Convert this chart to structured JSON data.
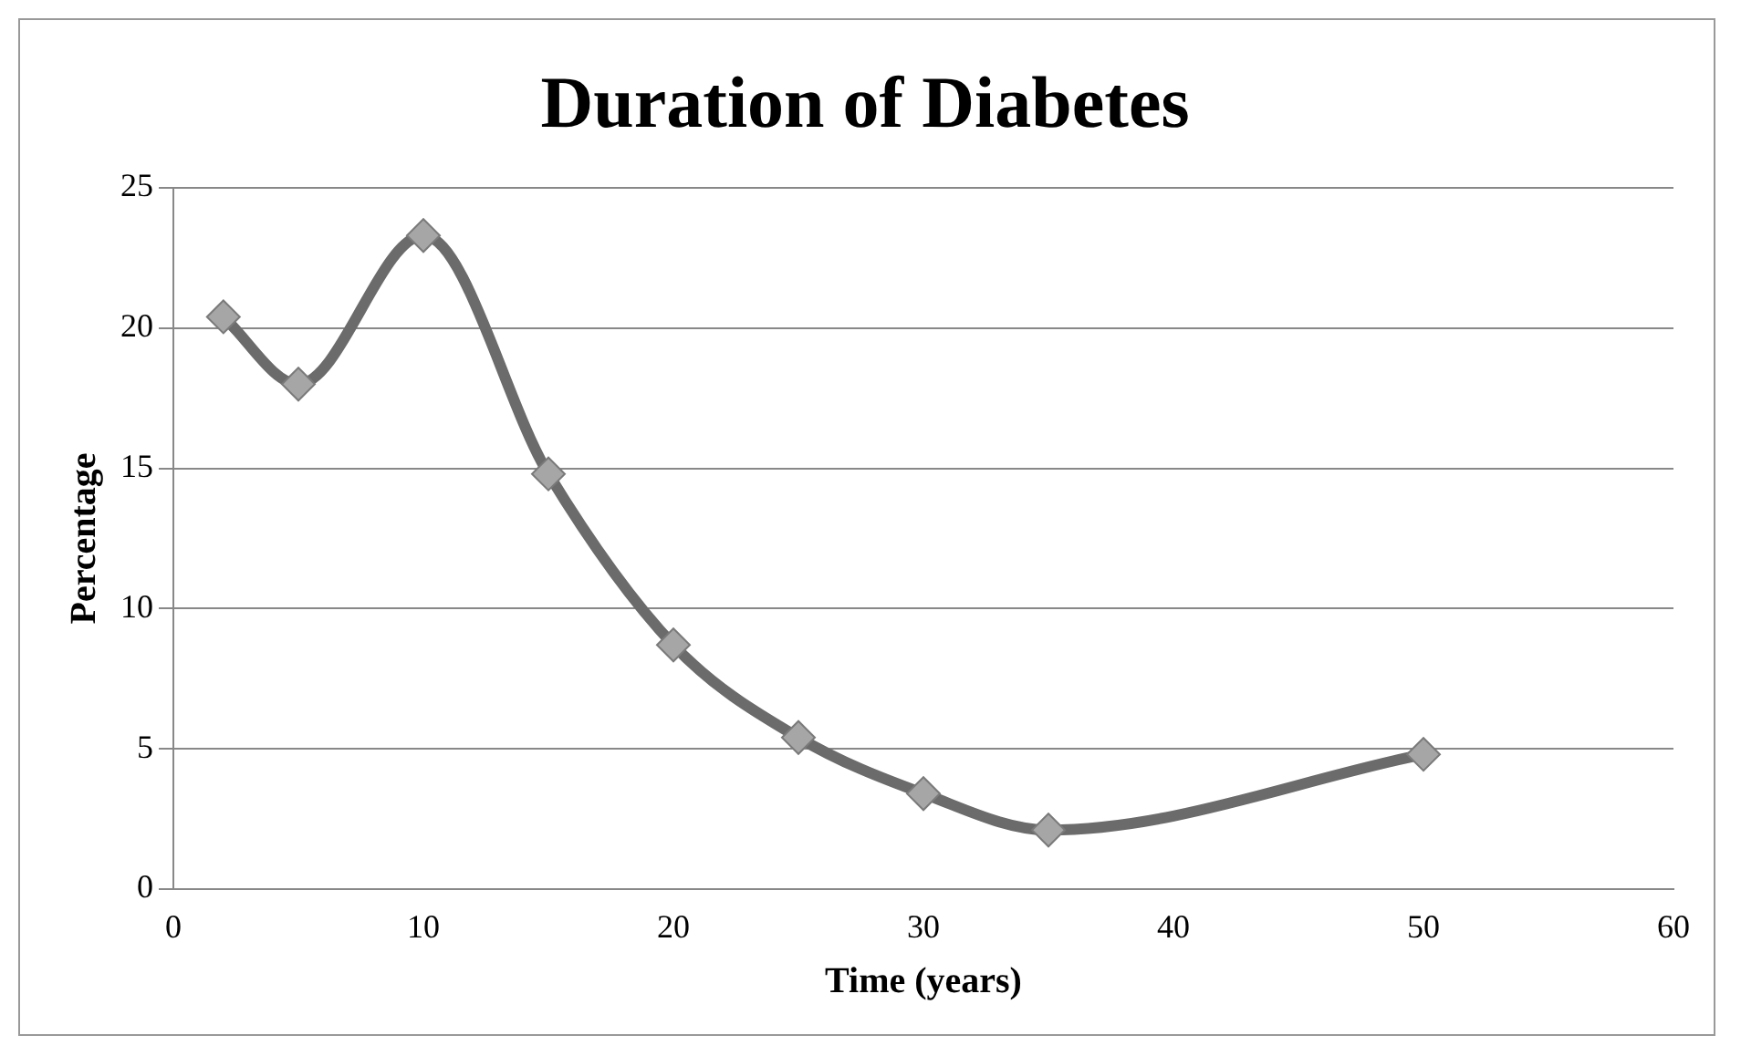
{
  "chart_data": {
    "type": "line",
    "title": "Duration of Diabetes",
    "xlabel": "Time (years)",
    "ylabel": "Percentage",
    "x": [
      2,
      5,
      10,
      15,
      20,
      25,
      30,
      35,
      50
    ],
    "series": [
      {
        "color": "#6b6b6b",
        "values": [
          20.4,
          18.0,
          23.3,
          14.8,
          8.7,
          5.4,
          3.4,
          2.1,
          4.8
        ]
      }
    ],
    "xlim": [
      0,
      60
    ],
    "xticks": [
      0,
      10,
      20,
      30,
      40,
      50,
      60
    ],
    "ylim": [
      0,
      25
    ],
    "yticks": [
      0,
      5,
      10,
      15,
      20,
      25
    ],
    "grid": "y",
    "legend": false,
    "marker": "diamond",
    "line_style": "solid"
  }
}
